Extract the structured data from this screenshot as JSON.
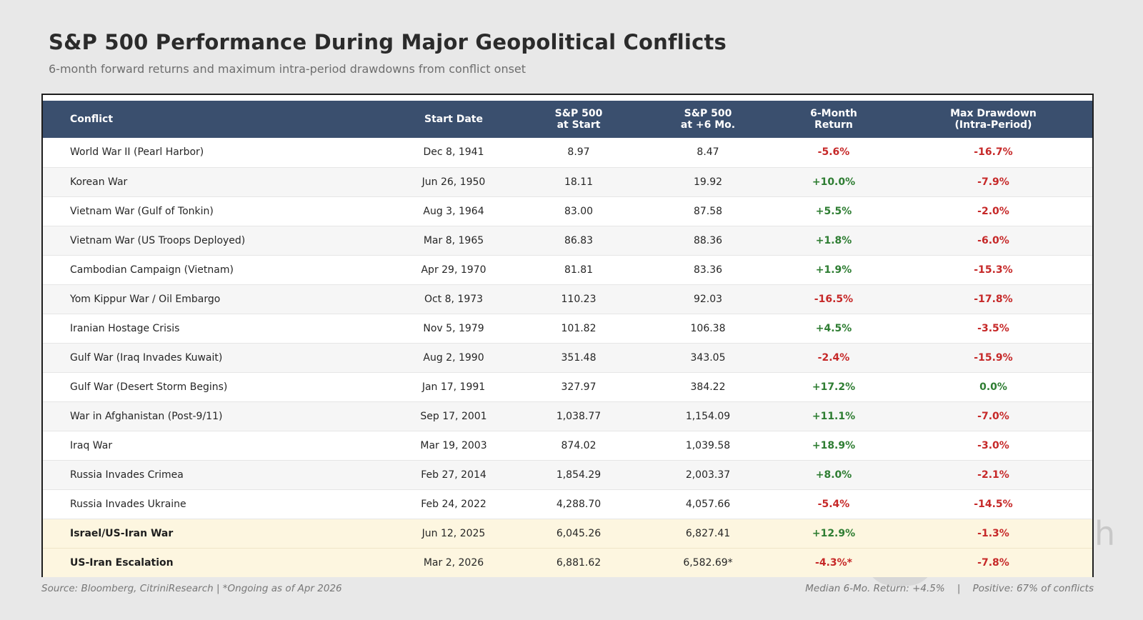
{
  "title": "S&P 500 Performance During Major Geopolitical Conflicts",
  "subtitle": "6-month forward returns and maximum intra-period drawdowns from conflict onset",
  "table": {
    "headers": {
      "conflict": "Conflict",
      "start_date": "Start Date",
      "sp_start_1": "S&P 500",
      "sp_start_2": "at Start",
      "sp_6mo_1": "S&P 500",
      "sp_6mo_2": "at +6 Mo.",
      "return_1": "6-Month",
      "return_2": "Return",
      "drawdown_1": "Max Drawdown",
      "drawdown_2": "(Intra-Period)"
    },
    "rows": [
      {
        "conflict": "World War II (Pearl Harbor)",
        "start_date": "Dec 8, 1941",
        "sp_start": "8.97",
        "sp_6mo": "8.47",
        "return": "-5.6%",
        "drawdown": "-16.7%"
      },
      {
        "conflict": "Korean War",
        "start_date": "Jun 26, 1950",
        "sp_start": "18.11",
        "sp_6mo": "19.92",
        "return": "+10.0%",
        "drawdown": "-7.9%"
      },
      {
        "conflict": "Vietnam War (Gulf of Tonkin)",
        "start_date": "Aug 3, 1964",
        "sp_start": "83.00",
        "sp_6mo": "87.58",
        "return": "+5.5%",
        "drawdown": "-2.0%"
      },
      {
        "conflict": "Vietnam War (US Troops Deployed)",
        "start_date": "Mar 8, 1965",
        "sp_start": "86.83",
        "sp_6mo": "88.36",
        "return": "+1.8%",
        "drawdown": "-6.0%"
      },
      {
        "conflict": "Cambodian Campaign (Vietnam)",
        "start_date": "Apr 29, 1970",
        "sp_start": "81.81",
        "sp_6mo": "83.36",
        "return": "+1.9%",
        "drawdown": "-15.3%"
      },
      {
        "conflict": "Yom Kippur War / Oil Embargo",
        "start_date": "Oct 8, 1973",
        "sp_start": "110.23",
        "sp_6mo": "92.03",
        "return": "-16.5%",
        "drawdown": "-17.8%"
      },
      {
        "conflict": "Iranian Hostage Crisis",
        "start_date": "Nov 5, 1979",
        "sp_start": "101.82",
        "sp_6mo": "106.38",
        "return": "+4.5%",
        "drawdown": "-3.5%"
      },
      {
        "conflict": "Gulf War (Iraq Invades Kuwait)",
        "start_date": "Aug 2, 1990",
        "sp_start": "351.48",
        "sp_6mo": "343.05",
        "return": "-2.4%",
        "drawdown": "-15.9%"
      },
      {
        "conflict": "Gulf War (Desert Storm Begins)",
        "start_date": "Jan 17, 1991",
        "sp_start": "327.97",
        "sp_6mo": "384.22",
        "return": "+17.2%",
        "drawdown": "0.0%"
      },
      {
        "conflict": "War in Afghanistan (Post-9/11)",
        "start_date": "Sep 17, 2001",
        "sp_start": "1,038.77",
        "sp_6mo": "1,154.09",
        "return": "+11.1%",
        "drawdown": "-7.0%"
      },
      {
        "conflict": "Iraq War",
        "start_date": "Mar 19, 2003",
        "sp_start": "874.02",
        "sp_6mo": "1,039.58",
        "return": "+18.9%",
        "drawdown": "-3.0%"
      },
      {
        "conflict": "Russia Invades Crimea",
        "start_date": "Feb 27, 2014",
        "sp_start": "1,854.29",
        "sp_6mo": "2,003.37",
        "return": "+8.0%",
        "drawdown": "-2.1%"
      },
      {
        "conflict": "Russia Invades Ukraine",
        "start_date": "Feb 24, 2022",
        "sp_start": "4,288.70",
        "sp_6mo": "4,057.66",
        "return": "-5.4%",
        "drawdown": "-14.5%"
      },
      {
        "conflict": "Israel/US-Iran War",
        "start_date": "Jun 12, 2025",
        "sp_start": "6,045.26",
        "sp_6mo": "6,827.41",
        "return": "+12.9%",
        "drawdown": "-1.3%"
      },
      {
        "conflict": "US-Iran Escalation",
        "start_date": "Mar 2, 2026",
        "sp_start": "6,881.62",
        "sp_6mo": "6,582.69*",
        "return": "-4.3%*",
        "drawdown": "-7.8%"
      }
    ]
  },
  "footer": {
    "source": "Source: Bloomberg, CitriniResearch  |  *Ongoing as of Apr 2026",
    "stats": "Median 6-Mo. Return: +4.5%    |    Positive: 67% of conflicts"
  },
  "watermark_letter": "h",
  "colors": {
    "header_bg": "#3a4f6e",
    "positive": "#2e7d32",
    "negative": "#c62828",
    "highlight_row": "#fdf6e0"
  }
}
